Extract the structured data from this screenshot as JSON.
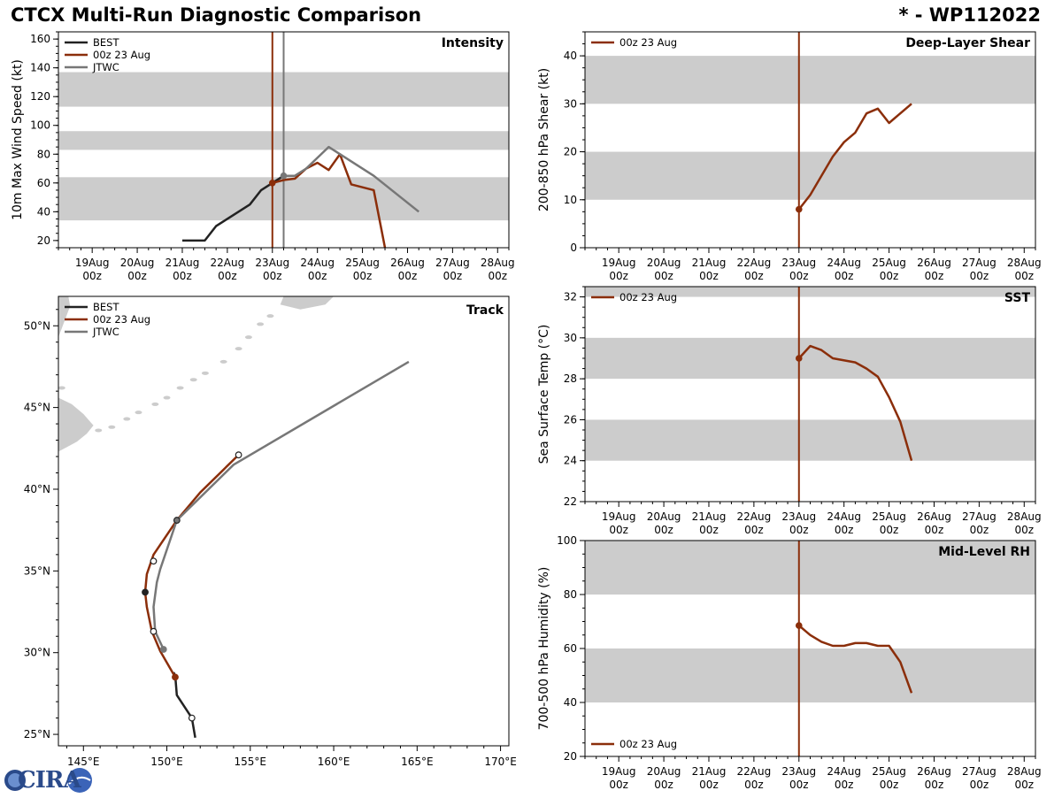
{
  "title_left": "CTCX Multi-Run Diagnostic Comparison",
  "title_right": "* - WP112022",
  "logo_text": "CIRA",
  "colors": {
    "best": "#222222",
    "run": "#8b2e0a",
    "jtwc": "#777777",
    "band": "#cccccc",
    "land": "#cccccc"
  },
  "time_ticks": [
    {
      "day": "19Aug",
      "hour": "00z",
      "h": -96
    },
    {
      "day": "20Aug",
      "hour": "00z",
      "h": -72
    },
    {
      "day": "21Aug",
      "hour": "00z",
      "h": -48
    },
    {
      "day": "22Aug",
      "hour": "00z",
      "h": -24
    },
    {
      "day": "23Aug",
      "hour": "00z",
      "h": 0
    },
    {
      "day": "24Aug",
      "hour": "00z",
      "h": 24
    },
    {
      "day": "25Aug",
      "hour": "00z",
      "h": 48
    },
    {
      "day": "26Aug",
      "hour": "00z",
      "h": 72
    },
    {
      "day": "27Aug",
      "hour": "00z",
      "h": 96
    },
    {
      "day": "28Aug",
      "hour": "00z",
      "h": 120
    }
  ],
  "chart_data": [
    {
      "id": "intensity",
      "type": "line",
      "title": "Intensity",
      "ylabel": "10m Max Wind Speed (kt)",
      "xlabel": "",
      "xunit": "hours from 23Aug 00z",
      "xlim": [
        -114,
        126
      ],
      "ylim": [
        15,
        165
      ],
      "yticks": [
        20,
        40,
        60,
        80,
        100,
        120,
        140,
        160
      ],
      "bands": [
        [
          34,
          64
        ],
        [
          83,
          96
        ],
        [
          113,
          137
        ]
      ],
      "vlines": [
        {
          "x": 0,
          "series": "run"
        },
        {
          "x": 6,
          "series": "jtwc"
        }
      ],
      "legend": [
        "BEST",
        "00z 23 Aug",
        "JTWC"
      ],
      "series": [
        {
          "name": "BEST",
          "key": "best",
          "x": [
            -48,
            -36,
            -30,
            -12,
            -6,
            0,
            6
          ],
          "y": [
            20,
            20,
            30,
            45,
            55,
            60,
            65
          ]
        },
        {
          "name": "00z 23 Aug",
          "key": "run",
          "x": [
            0,
            6,
            12,
            18,
            24,
            30,
            36,
            42,
            54,
            60
          ],
          "y": [
            60,
            62,
            63,
            70,
            74,
            69,
            80,
            59,
            55,
            15
          ]
        },
        {
          "name": "JTWC",
          "key": "jtwc",
          "x": [
            6,
            12,
            18,
            30,
            42,
            54,
            78
          ],
          "y": [
            65,
            65,
            70,
            85,
            75,
            65,
            40
          ]
        }
      ],
      "markers": [
        {
          "series": "run",
          "x": 0,
          "y": 60
        },
        {
          "series": "jtwc",
          "x": 6,
          "y": 65
        }
      ]
    },
    {
      "id": "shear",
      "type": "line",
      "title": "Deep-Layer Shear",
      "ylabel": "200-850 hPa Shear (kt)",
      "xlabel": "",
      "xunit": "hours from 23Aug 00z",
      "xlim": [
        -114,
        126
      ],
      "ylim": [
        0,
        45
      ],
      "yticks": [
        0,
        10,
        20,
        30,
        40
      ],
      "bands": [
        [
          10,
          20
        ],
        [
          30,
          40
        ]
      ],
      "vlines": [
        {
          "x": 0,
          "series": "run"
        }
      ],
      "legend": [
        "00z 23 Aug"
      ],
      "series": [
        {
          "name": "00z 23 Aug",
          "key": "run",
          "x": [
            0,
            6,
            12,
            18,
            24,
            30,
            36,
            42,
            48,
            60
          ],
          "y": [
            8,
            11,
            15,
            19,
            22,
            24,
            28,
            29,
            26,
            30
          ]
        }
      ],
      "markers": [
        {
          "series": "run",
          "x": 0,
          "y": 8
        }
      ]
    },
    {
      "id": "sst",
      "type": "line",
      "title": "SST",
      "ylabel": "Sea Surface Temp (°C)",
      "xlabel": "",
      "xunit": "hours from 23Aug 00z",
      "xlim": [
        -114,
        126
      ],
      "ylim": [
        22,
        32.5
      ],
      "yticks": [
        22,
        24,
        26,
        28,
        30,
        32
      ],
      "bands": [
        [
          24,
          26
        ],
        [
          28,
          30
        ],
        [
          32,
          32.5
        ]
      ],
      "vlines": [
        {
          "x": 0,
          "series": "run"
        }
      ],
      "legend": [
        "00z 23 Aug"
      ],
      "series": [
        {
          "name": "00z 23 Aug",
          "key": "run",
          "x": [
            0,
            6,
            12,
            18,
            30,
            36,
            42,
            48,
            54,
            60
          ],
          "y": [
            29,
            29.6,
            29.4,
            29,
            28.8,
            28.5,
            28.1,
            27.1,
            25.9,
            24
          ]
        }
      ],
      "markers": [
        {
          "series": "run",
          "x": 0,
          "y": 29
        }
      ]
    },
    {
      "id": "rh",
      "type": "line",
      "title": "Mid-Level RH",
      "ylabel": "700-500 hPa Humidity (%)",
      "xlabel": "",
      "xunit": "hours from 23Aug 00z",
      "xlim": [
        -114,
        126
      ],
      "ylim": [
        20,
        100
      ],
      "yticks": [
        20,
        40,
        60,
        80,
        100
      ],
      "bands": [
        [
          40,
          60
        ],
        [
          80,
          100
        ]
      ],
      "vlines": [
        {
          "x": 0,
          "series": "run"
        }
      ],
      "legend": [
        "00z 23 Aug"
      ],
      "legend_loc": "lower-left",
      "series": [
        {
          "name": "00z 23 Aug",
          "key": "run",
          "x": [
            0,
            6,
            12,
            18,
            24,
            30,
            36,
            42,
            48,
            54,
            60
          ],
          "y": [
            68.5,
            65,
            62.5,
            61,
            61,
            62,
            62,
            61,
            61,
            55,
            43.5
          ]
        }
      ],
      "markers": [
        {
          "series": "run",
          "x": 0,
          "y": 68.5
        }
      ]
    },
    {
      "id": "track",
      "type": "line",
      "title": "Track",
      "xlabel": "",
      "ylabel": "",
      "xlim": [
        143.5,
        170.5
      ],
      "ylim": [
        24.3,
        51.8
      ],
      "xticks": [
        145,
        150,
        155,
        160,
        165,
        170
      ],
      "xticklabels": [
        "145°E",
        "150°E",
        "155°E",
        "160°E",
        "165°E",
        "170°E"
      ],
      "yticks": [
        25,
        30,
        35,
        40,
        45,
        50
      ],
      "yticklabels": [
        "25°N",
        "30°N",
        "35°N",
        "40°N",
        "45°N",
        "50°N"
      ],
      "legend": [
        "BEST",
        "00z 23 Aug",
        "JTWC"
      ],
      "series": [
        {
          "name": "BEST",
          "key": "best",
          "lon": [
            151.7,
            151.5,
            150.6,
            150.5,
            150.4
          ],
          "lat": [
            24.8,
            26.0,
            27.4,
            28.6,
            28.8
          ]
        },
        {
          "name": "00z 23 Aug",
          "key": "run",
          "lon": [
            150.5,
            149.6,
            149.1,
            148.8,
            148.7,
            148.8,
            149.2,
            150.6,
            152.0,
            154.2
          ],
          "lat": [
            28.5,
            30.1,
            31.3,
            32.8,
            33.7,
            34.8,
            36.0,
            38.1,
            39.8,
            42.0
          ]
        },
        {
          "name": "JTWC",
          "key": "jtwc",
          "lon": [
            149.8,
            149.3,
            149.2,
            149.4,
            149.6,
            150.6,
            154.0,
            164.5
          ],
          "lat": [
            30.2,
            31.3,
            32.8,
            34.3,
            35.1,
            38.1,
            41.5,
            47.8
          ]
        }
      ],
      "track_markers": [
        {
          "lon": 151.5,
          "lat": 26.0,
          "fill": "white",
          "key": "best"
        },
        {
          "lon": 150.5,
          "lat": 28.5,
          "fill": "run",
          "key": "run"
        },
        {
          "lon": 149.8,
          "lat": 30.2,
          "fill": "jtwc",
          "key": "jtwc"
        },
        {
          "lon": 149.2,
          "lat": 31.3,
          "fill": "white",
          "key": "best"
        },
        {
          "lon": 148.7,
          "lat": 33.7,
          "fill": "best",
          "key": "best"
        },
        {
          "lon": 149.2,
          "lat": 35.6,
          "fill": "white",
          "key": "best"
        },
        {
          "lon": 150.6,
          "lat": 38.1,
          "fill": "jtwc",
          "key": "best"
        },
        {
          "lon": 154.3,
          "lat": 42.1,
          "fill": "white",
          "key": "best"
        }
      ],
      "land": [
        {
          "name": "hokkaido",
          "lon": [
            143.5,
            144.3,
            145.0,
            145.6,
            145.2,
            144.6,
            143.5
          ],
          "lat": [
            45.6,
            45.2,
            44.6,
            43.9,
            43.4,
            42.9,
            42.3
          ]
        },
        {
          "name": "kamchatka",
          "lon": [
            157.0,
            158.2,
            160.0,
            159.5,
            158.0,
            156.8
          ],
          "lat": [
            51.8,
            51.8,
            51.8,
            51.3,
            51.0,
            51.3
          ]
        },
        {
          "name": "sakhalin",
          "lon": [
            143.5,
            144.1,
            144.2,
            143.5
          ],
          "lat": [
            51.8,
            51.8,
            51.2,
            49.3
          ]
        }
      ],
      "islands": [
        {
          "lon": 145.9,
          "lat": 43.6
        },
        {
          "lon": 146.7,
          "lat": 43.8
        },
        {
          "lon": 147.6,
          "lat": 44.3
        },
        {
          "lon": 148.3,
          "lat": 44.7
        },
        {
          "lon": 149.3,
          "lat": 45.2
        },
        {
          "lon": 150.0,
          "lat": 45.6
        },
        {
          "lon": 150.8,
          "lat": 46.2
        },
        {
          "lon": 151.6,
          "lat": 46.7
        },
        {
          "lon": 152.3,
          "lat": 47.1
        },
        {
          "lon": 153.4,
          "lat": 47.8
        },
        {
          "lon": 154.3,
          "lat": 48.6
        },
        {
          "lon": 154.9,
          "lat": 49.3
        },
        {
          "lon": 155.6,
          "lat": 50.1
        },
        {
          "lon": 156.2,
          "lat": 50.6
        },
        {
          "lon": 143.7,
          "lat": 46.2
        },
        {
          "lon": 143.9,
          "lat": 45.0
        }
      ]
    }
  ]
}
